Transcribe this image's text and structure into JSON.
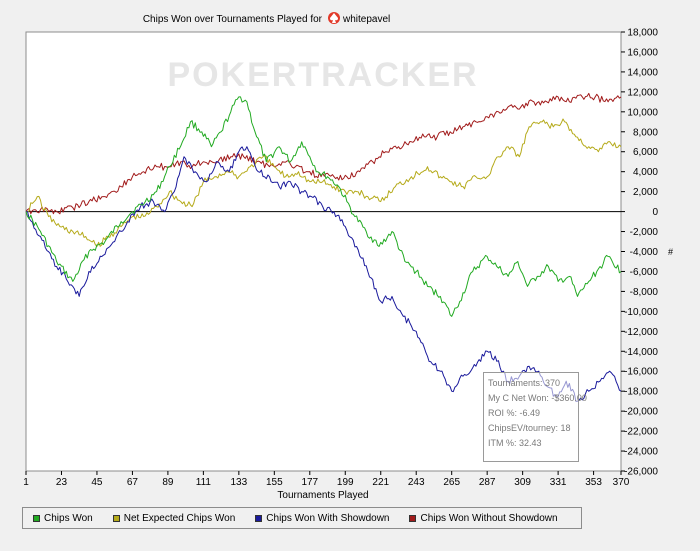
{
  "chart_data": {
    "type": "line",
    "title_text": "Chips Won over Tournaments Played for",
    "player": "whitepavel",
    "watermark": "POKERTRACKER",
    "xlabel": "Tournaments Played",
    "ylabel": "#",
    "xlim": [
      1,
      370
    ],
    "ylim": [
      -26000,
      18000
    ],
    "x_ticks": [
      "1",
      "23",
      "45",
      "67",
      "89",
      "111",
      "133",
      "155",
      "177",
      "199",
      "221",
      "243",
      "265",
      "287",
      "309",
      "331",
      "353",
      "370"
    ],
    "y_ticks": [
      "18,000",
      "16,000",
      "14,000",
      "12,000",
      "10,000",
      "8,000",
      "6,000",
      "4,000",
      "2,000",
      "0",
      "-2,000",
      "-4,000",
      "-6,000",
      "-8,000",
      "-10,000",
      "-12,000",
      "-14,000",
      "-16,000",
      "-18,000",
      "-20,000",
      "-22,000",
      "-24,000",
      "-26,000"
    ],
    "series": [
      {
        "name": "Chips Won",
        "color": "#22aa22",
        "x": [
          1,
          10,
          20,
          30,
          40,
          50,
          60,
          67,
          75,
          82,
          90,
          98,
          103,
          110,
          116,
          122,
          128,
          133,
          138,
          143,
          150,
          158,
          165,
          172,
          177,
          182,
          188,
          195,
          200,
          205,
          212,
          220,
          228,
          236,
          243,
          250,
          258,
          265,
          270,
          278,
          287,
          293,
          300,
          306,
          312,
          318,
          325,
          331,
          338,
          343,
          350,
          355,
          362,
          370
        ],
        "values": [
          0,
          -2000,
          -5000,
          -7000,
          -4000,
          -3000,
          -1000,
          0,
          1000,
          2000,
          4500,
          7000,
          9000,
          8000,
          6500,
          8000,
          10000,
          11500,
          11000,
          8000,
          5000,
          6500,
          5000,
          7000,
          5500,
          4000,
          3500,
          2500,
          1000,
          -500,
          -2000,
          -3500,
          -2000,
          -5000,
          -6000,
          -7500,
          -8500,
          -10500,
          -9000,
          -6000,
          -4500,
          -5500,
          -6500,
          -5000,
          -7500,
          -6500,
          -5500,
          -7000,
          -6500,
          -8500,
          -7000,
          -6000,
          -4500,
          -6000
        ]
      },
      {
        "name": "Net Expected Chips Won",
        "color": "#b5aa1a",
        "x": [
          1,
          8,
          15,
          22,
          30,
          38,
          45,
          52,
          60,
          67,
          74,
          82,
          90,
          97,
          104,
          111,
          118,
          125,
          133,
          140,
          148,
          155,
          162,
          170,
          177,
          185,
          192,
          199,
          206,
          213,
          221,
          230,
          240,
          250,
          258,
          265,
          272,
          280,
          287,
          294,
          300,
          307,
          313,
          320,
          328,
          335,
          342,
          350,
          356,
          362,
          370
        ],
        "values": [
          0,
          1500,
          -500,
          -1500,
          -2000,
          -2500,
          -3500,
          -2500,
          -1500,
          -500,
          -500,
          500,
          2000,
          1000,
          500,
          3000,
          3500,
          4000,
          3500,
          4500,
          5500,
          4500,
          3500,
          4000,
          3000,
          3000,
          2500,
          2000,
          2000,
          1500,
          1000,
          2500,
          3500,
          4500,
          3500,
          3000,
          2500,
          3500,
          3500,
          5500,
          6500,
          5500,
          8500,
          9000,
          8500,
          9000,
          7500,
          6500,
          6000,
          7000,
          6500
        ]
      },
      {
        "name": "Chips Won With Showdown",
        "color": "#1a1a9c",
        "x": [
          1,
          10,
          20,
          30,
          34,
          40,
          48,
          56,
          64,
          72,
          80,
          87,
          93,
          99,
          106,
          113,
          120,
          127,
          133,
          138,
          145,
          152,
          158,
          165,
          172,
          178,
          185,
          192,
          199,
          206,
          213,
          221,
          228,
          235,
          243,
          250,
          258,
          265,
          272,
          280,
          287,
          293,
          300,
          307,
          313,
          319,
          324,
          330,
          336,
          343,
          350,
          357,
          363,
          370
        ],
        "values": [
          0,
          -2500,
          -5500,
          -7500,
          -8500,
          -6000,
          -4500,
          -3000,
          -1000,
          500,
          1000,
          0,
          2000,
          5500,
          4000,
          3000,
          5000,
          4000,
          6000,
          6500,
          4000,
          3500,
          2500,
          3000,
          2000,
          1500,
          500,
          0,
          -1500,
          -3500,
          -6000,
          -9000,
          -8500,
          -10500,
          -12000,
          -14500,
          -16000,
          -18000,
          -16500,
          -15500,
          -14000,
          -15000,
          -17000,
          -16500,
          -15500,
          -16000,
          -17500,
          -18500,
          -17000,
          -19000,
          -18000,
          -17000,
          -16000,
          -18000
        ]
      },
      {
        "name": "Chips Won Without Showdown",
        "color": "#a11a1a",
        "x": [
          1,
          10,
          20,
          30,
          40,
          50,
          60,
          67,
          74,
          82,
          90,
          97,
          104,
          111,
          120,
          128,
          136,
          144,
          152,
          160,
          168,
          176,
          184,
          192,
          200,
          208,
          216,
          224,
          232,
          240,
          248,
          256,
          264,
          272,
          280,
          287,
          294,
          300,
          308,
          316,
          324,
          331,
          338,
          346,
          354,
          362,
          370
        ],
        "values": [
          0,
          200,
          0,
          400,
          1000,
          1500,
          2500,
          3500,
          4000,
          4500,
          4500,
          5000,
          4500,
          5000,
          5000,
          5500,
          5500,
          5000,
          4500,
          5000,
          4500,
          4000,
          3500,
          3500,
          3500,
          4000,
          5000,
          6000,
          6500,
          7000,
          7500,
          7500,
          8000,
          8500,
          9000,
          9500,
          10000,
          10500,
          10500,
          11000,
          11000,
          11500,
          11000,
          11500,
          11500,
          11000,
          11500
        ]
      }
    ],
    "legend_position": "bottom",
    "grid": false
  },
  "tooltip": {
    "tournaments": "Tournaments: 370",
    "net_won": "My C Net Won: -$360.00",
    "roi": "ROI %: -6.49",
    "chipsev": "ChipsEV/tourney: 18",
    "itm": "ITM %: 32.43"
  }
}
